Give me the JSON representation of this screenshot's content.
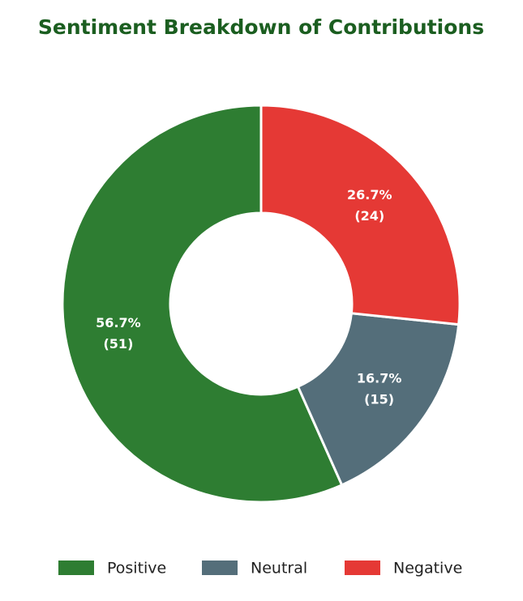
{
  "chart_data": {
    "type": "donut",
    "title": "Sentiment Breakdown of Contributions",
    "categories": [
      "Positive",
      "Neutral",
      "Negative"
    ],
    "values": [
      51,
      15,
      24
    ],
    "value_labels": [
      "(51)",
      "(15)",
      "(24)"
    ],
    "percent_labels": [
      "56.7%",
      "16.7%",
      "26.7%"
    ],
    "colors": [
      "#2e7d32",
      "#546e7a",
      "#e53935"
    ],
    "direction": "counterclockwise",
    "legend": "bottom"
  }
}
